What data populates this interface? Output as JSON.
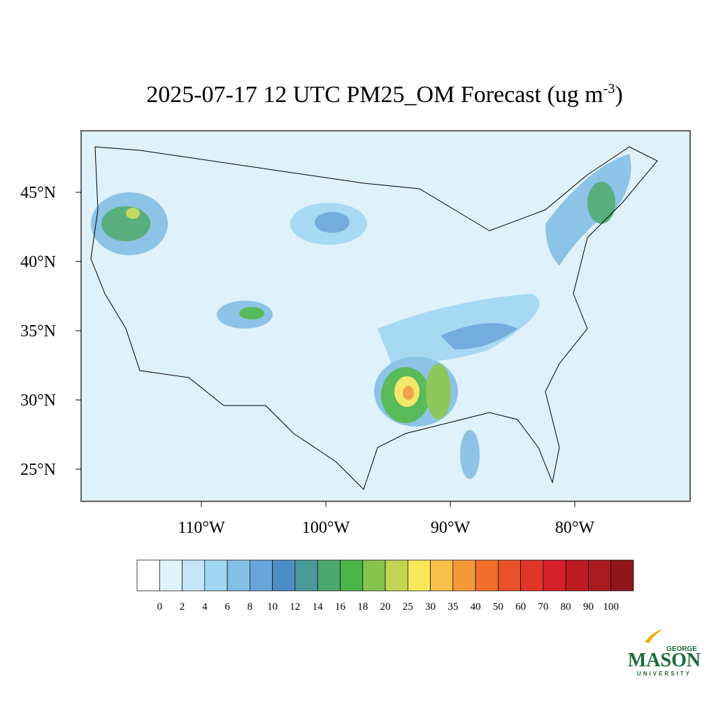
{
  "header": {
    "title": "2025-07-17 12 UTC PM25_OM Forecast (ug m",
    "title_superscript": "-3",
    "title_end": ")"
  },
  "map": {
    "lat_labels": [
      "45°N",
      "40°N",
      "35°N",
      "30°N",
      "25°N"
    ],
    "lon_labels": [
      "110°W",
      "100°W",
      "90°W",
      "80°W"
    ]
  },
  "colorbar": {
    "labels": [
      "0",
      "2",
      "4",
      "6",
      "8",
      "10",
      "12",
      "14",
      "16",
      "18",
      "20",
      "25",
      "30",
      "35",
      "40",
      "50",
      "60",
      "70",
      "80",
      "90",
      "100"
    ],
    "colors": [
      "#ffffff",
      "#e0f3fb",
      "#c4e6f8",
      "#a2d7f3",
      "#84bfe6",
      "#68a6db",
      "#4c8cc7",
      "#4b9a9a",
      "#4aa870",
      "#4bb548",
      "#86c44d",
      "#c2d654",
      "#f6e85a",
      "#f8c04a",
      "#f49a3a",
      "#f06f2b",
      "#e8512a",
      "#e03528",
      "#d42029",
      "#bd1b24",
      "#a71a20",
      "#8e161a"
    ]
  },
  "logo": {
    "top": "GEORGE",
    "main": "MASON",
    "bottom": "UNIVERSITY"
  }
}
